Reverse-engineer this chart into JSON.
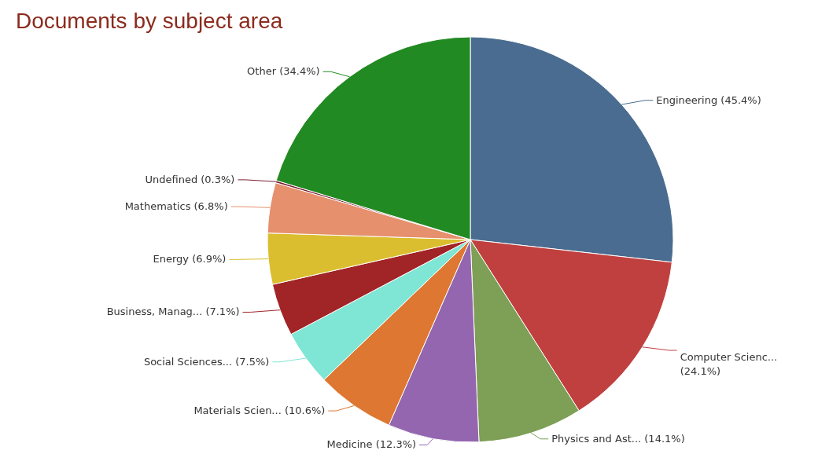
{
  "chart_data": {
    "type": "pie",
    "title": "Documents by subject area",
    "categories": [
      "Engineering",
      "Computer Scienc...",
      "Physics and Ast...",
      "Medicine",
      "Materials Scien...",
      "Social Sciences...",
      "Business, Manag...",
      "Energy",
      "Mathematics",
      "Undefined",
      "Other"
    ],
    "values": [
      45.4,
      24.1,
      14.1,
      12.3,
      10.6,
      7.5,
      7.1,
      6.9,
      6.8,
      0.3,
      34.4
    ],
    "value_labels": [
      "(45.4%)",
      "(24.1%)",
      "(14.1%)",
      "(12.3%)",
      "(10.6%)",
      "(7.5%)",
      "(7.1%)",
      "(6.9%)",
      "(6.8%)",
      "(0.3%)",
      "(34.4%)"
    ],
    "colors": [
      "#4a6c90",
      "#c0403f",
      "#7e9f56",
      "#9466b0",
      "#dd7731",
      "#7fe5d4",
      "#a12427",
      "#dbbe2f",
      "#e6906d",
      "#7a1c33",
      "#228a22"
    ]
  }
}
